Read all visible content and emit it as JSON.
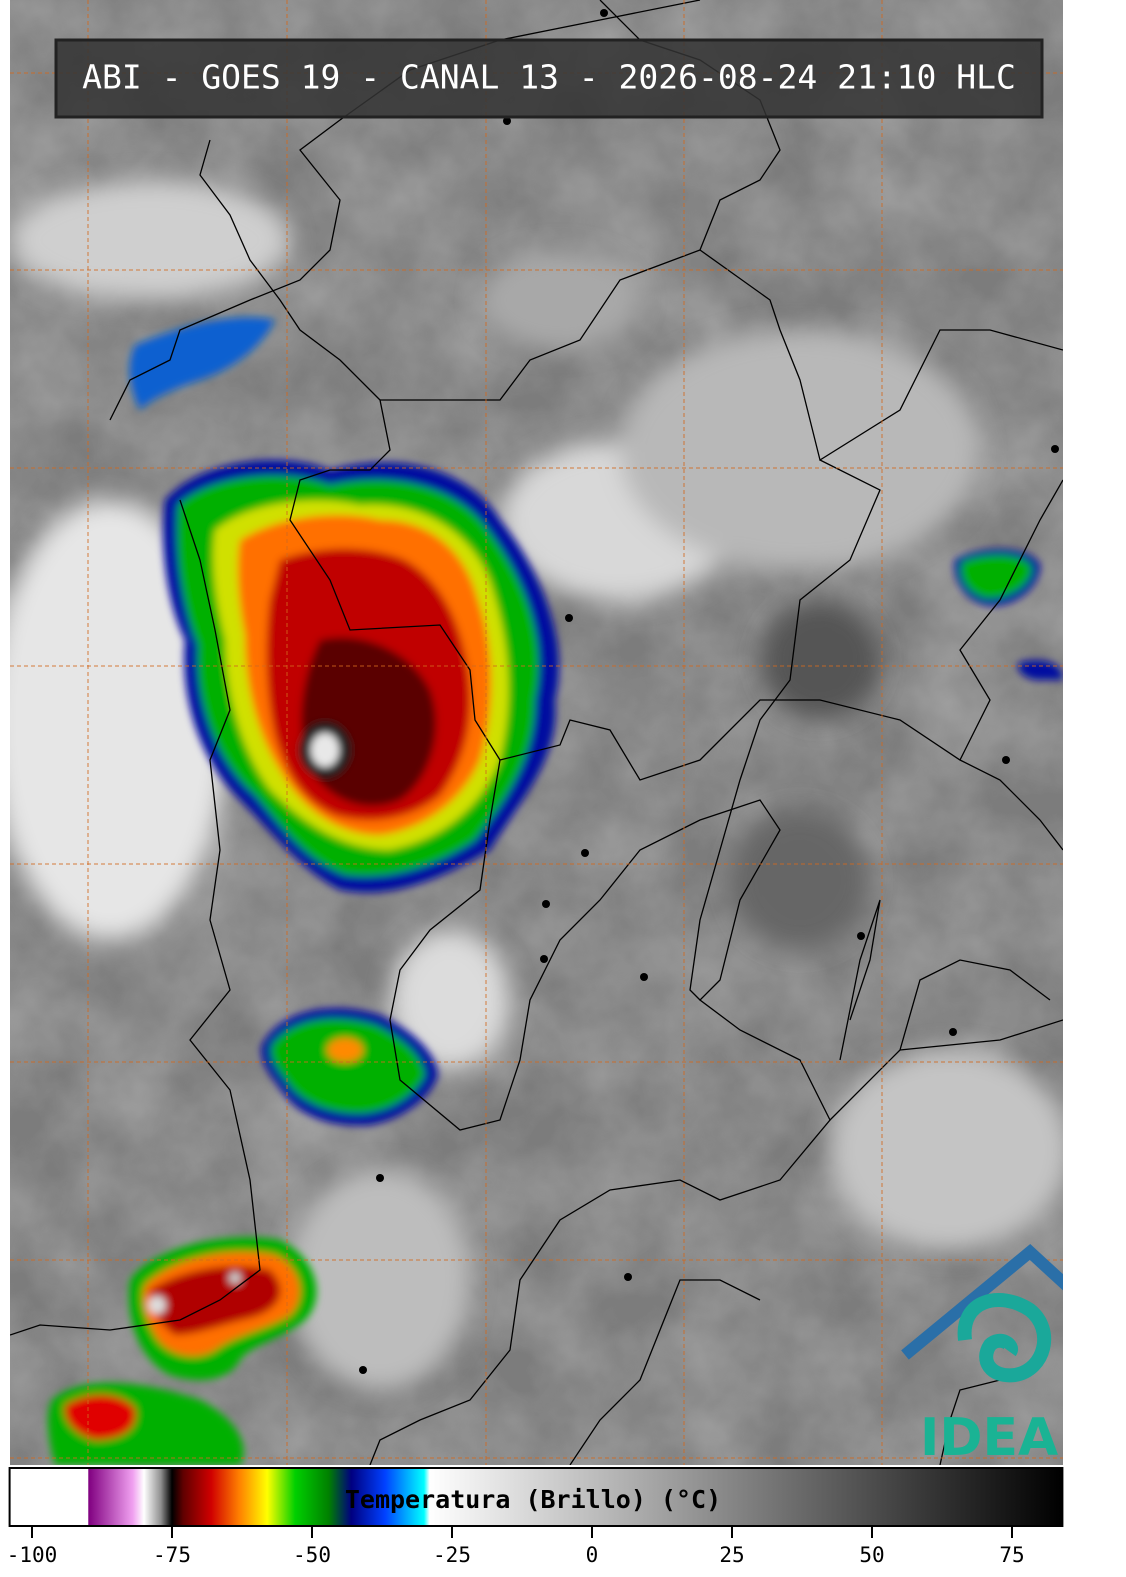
{
  "header": {
    "title": "ABI - GOES 19 - CANAL 13 - 2026-08-24 21:10 HLC"
  },
  "logo": {
    "text": "IDEAM"
  },
  "colorbar": {
    "label": "Temperatura (Brillo) (°C)",
    "lim": [
      -104,
      84
    ],
    "ticks": [
      -100,
      -75,
      -50,
      -25,
      0,
      25,
      50,
      75
    ],
    "colormap": [
      {
        "value": -104,
        "color": "#ffffff"
      },
      {
        "value": -90,
        "color": "#ffffff"
      },
      {
        "value": -89.9,
        "color": "#800080"
      },
      {
        "value": -82,
        "color": "#f0a0f0"
      },
      {
        "value": -80,
        "color": "#ffffff"
      },
      {
        "value": -77,
        "color": "#909090"
      },
      {
        "value": -75,
        "color": "#000000"
      },
      {
        "value": -73,
        "color": "#600000"
      },
      {
        "value": -68,
        "color": "#d00000"
      },
      {
        "value": -63,
        "color": "#ff8000"
      },
      {
        "value": -58,
        "color": "#ffff00"
      },
      {
        "value": -53,
        "color": "#00d000"
      },
      {
        "value": -47,
        "color": "#008000"
      },
      {
        "value": -43,
        "color": "#000080"
      },
      {
        "value": -37,
        "color": "#0040ff"
      },
      {
        "value": -30,
        "color": "#00ffff"
      },
      {
        "value": -29,
        "color": "#ffffff"
      },
      {
        "value": 84,
        "color": "#000000"
      }
    ]
  }
}
